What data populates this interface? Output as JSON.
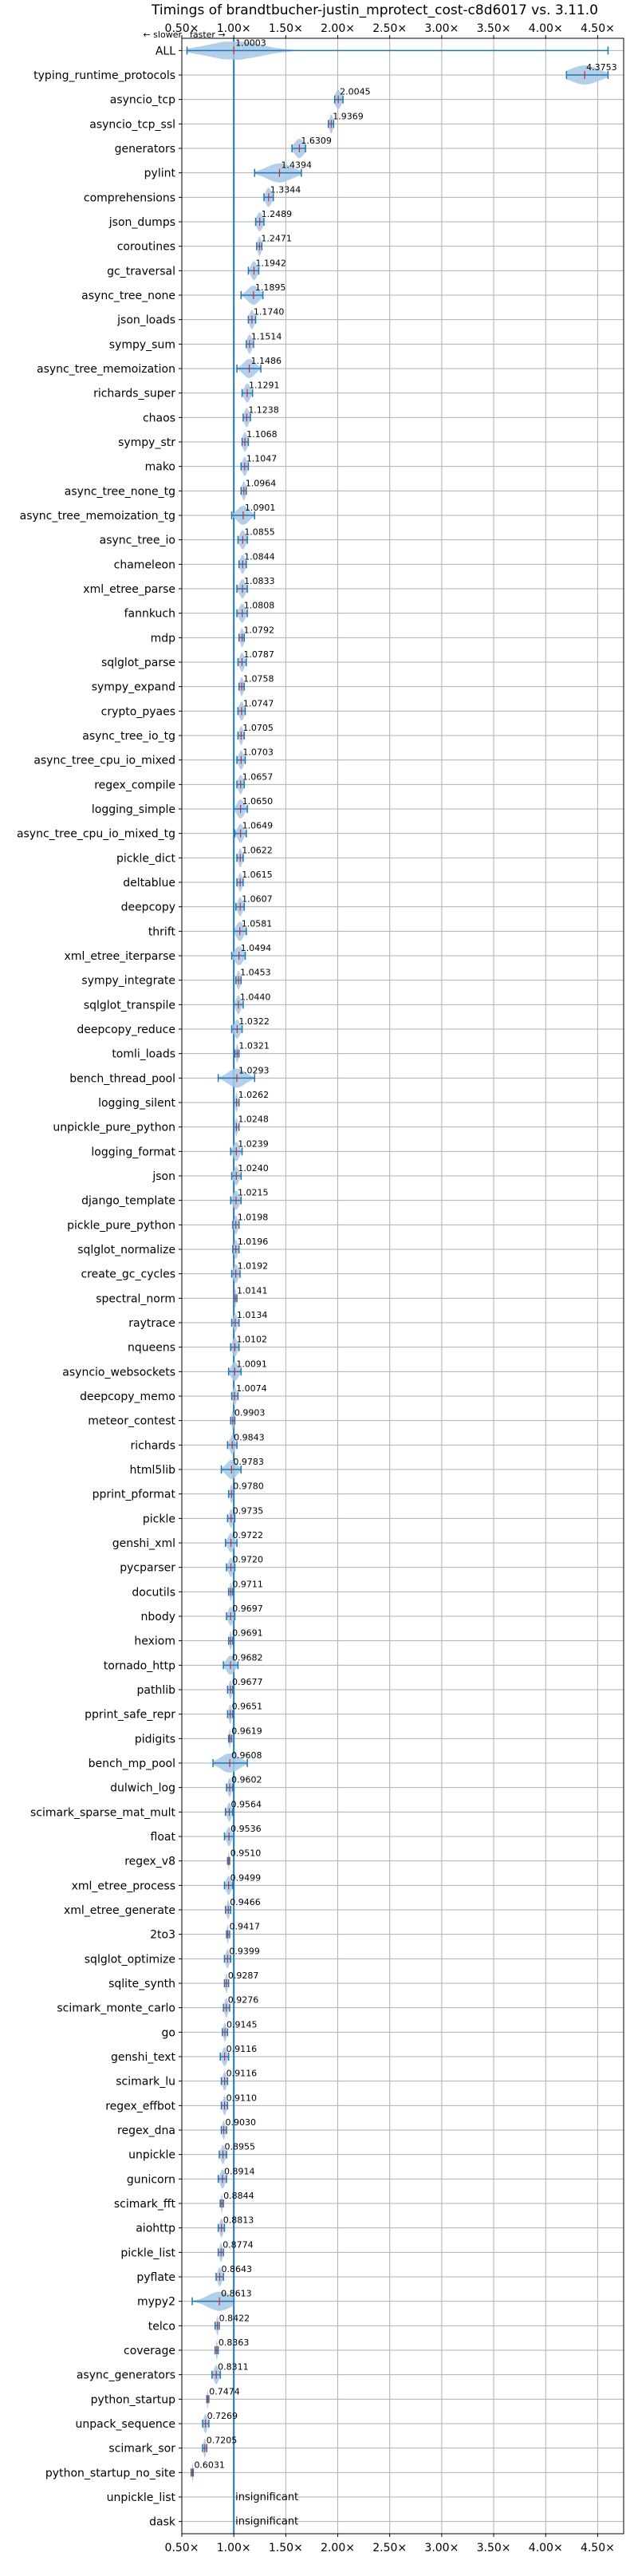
{
  "chart_data": {
    "type": "violin",
    "title": "Timings of brandtbucher-justin_mprotect_cost-c8d6017 vs. 3.11.0",
    "direction_note": {
      "slower": "← slower",
      "faster": "faster →"
    },
    "xlim": [
      0.5,
      4.75
    ],
    "xticks": [
      "0.50×",
      "1.00×",
      "1.50×",
      "2.00×",
      "2.50×",
      "3.00×",
      "3.50×",
      "4.00×",
      "4.50×"
    ],
    "xtick_values": [
      0.5,
      1.0,
      1.5,
      2.0,
      2.5,
      3.0,
      3.5,
      4.0,
      4.5
    ],
    "reference_line": 1.0,
    "grid": true,
    "insignificant_label": "insignificant",
    "benchmarks": [
      {
        "name": "ALL",
        "value": 1.0003,
        "label": "1.0003",
        "lo": 0.55,
        "hi": 4.6,
        "spread": 0.45
      },
      {
        "name": "typing_runtime_protocols",
        "value": 4.3753,
        "label": "4.3753",
        "lo": 4.2,
        "hi": 4.6,
        "spread": 0.25
      },
      {
        "name": "asyncio_tcp",
        "value": 2.0045,
        "label": "2.0045",
        "lo": 1.97,
        "hi": 2.05,
        "spread": 0.05
      },
      {
        "name": "asyncio_tcp_ssl",
        "value": 1.9369,
        "label": "1.9369",
        "lo": 1.91,
        "hi": 1.96,
        "spread": 0.03
      },
      {
        "name": "generators",
        "value": 1.6309,
        "label": "1.6309",
        "lo": 1.56,
        "hi": 1.69,
        "spread": 0.08
      },
      {
        "name": "pylint",
        "value": 1.4394,
        "label": "1.4394",
        "lo": 1.2,
        "hi": 1.65,
        "spread": 0.22
      },
      {
        "name": "comprehensions",
        "value": 1.3344,
        "label": "1.3344",
        "lo": 1.29,
        "hi": 1.38,
        "spread": 0.05
      },
      {
        "name": "json_dumps",
        "value": 1.2489,
        "label": "1.2489",
        "lo": 1.21,
        "hi": 1.29,
        "spread": 0.05
      },
      {
        "name": "coroutines",
        "value": 1.2471,
        "label": "1.2471",
        "lo": 1.22,
        "hi": 1.27,
        "spread": 0.03
      },
      {
        "name": "gc_traversal",
        "value": 1.1942,
        "label": "1.1942",
        "lo": 1.14,
        "hi": 1.24,
        "spread": 0.05
      },
      {
        "name": "async_tree_none",
        "value": 1.1895,
        "label": "1.1895",
        "lo": 1.07,
        "hi": 1.28,
        "spread": 0.1
      },
      {
        "name": "json_loads",
        "value": 1.174,
        "label": "1.1740",
        "lo": 1.14,
        "hi": 1.21,
        "spread": 0.04
      },
      {
        "name": "sympy_sum",
        "value": 1.1514,
        "label": "1.1514",
        "lo": 1.12,
        "hi": 1.19,
        "spread": 0.04
      },
      {
        "name": "async_tree_memoization",
        "value": 1.1486,
        "label": "1.1486",
        "lo": 1.03,
        "hi": 1.26,
        "spread": 0.1
      },
      {
        "name": "richards_super",
        "value": 1.1291,
        "label": "1.1291",
        "lo": 1.08,
        "hi": 1.18,
        "spread": 0.05
      },
      {
        "name": "chaos",
        "value": 1.1238,
        "label": "1.1238",
        "lo": 1.09,
        "hi": 1.16,
        "spread": 0.04
      },
      {
        "name": "sympy_str",
        "value": 1.1068,
        "label": "1.1068",
        "lo": 1.08,
        "hi": 1.14,
        "spread": 0.04
      },
      {
        "name": "mako",
        "value": 1.1047,
        "label": "1.1047",
        "lo": 1.07,
        "hi": 1.14,
        "spread": 0.04
      },
      {
        "name": "async_tree_none_tg",
        "value": 1.0964,
        "label": "1.0964",
        "lo": 1.07,
        "hi": 1.12,
        "spread": 0.03
      },
      {
        "name": "async_tree_memoization_tg",
        "value": 1.0901,
        "label": "1.0901",
        "lo": 0.98,
        "hi": 1.2,
        "spread": 0.1
      },
      {
        "name": "async_tree_io",
        "value": 1.0855,
        "label": "1.0855",
        "lo": 1.04,
        "hi": 1.13,
        "spread": 0.05
      },
      {
        "name": "chameleon",
        "value": 1.0844,
        "label": "1.0844",
        "lo": 1.05,
        "hi": 1.12,
        "spread": 0.04
      },
      {
        "name": "xml_etree_parse",
        "value": 1.0833,
        "label": "1.0833",
        "lo": 1.03,
        "hi": 1.13,
        "spread": 0.05
      },
      {
        "name": "fannkuch",
        "value": 1.0808,
        "label": "1.0808",
        "lo": 1.03,
        "hi": 1.13,
        "spread": 0.05
      },
      {
        "name": "mdp",
        "value": 1.0792,
        "label": "1.0792",
        "lo": 1.05,
        "hi": 1.1,
        "spread": 0.03
      },
      {
        "name": "sqlglot_parse",
        "value": 1.0787,
        "label": "1.0787",
        "lo": 1.04,
        "hi": 1.12,
        "spread": 0.04
      },
      {
        "name": "sympy_expand",
        "value": 1.0758,
        "label": "1.0758",
        "lo": 1.05,
        "hi": 1.1,
        "spread": 0.03
      },
      {
        "name": "crypto_pyaes",
        "value": 1.0747,
        "label": "1.0747",
        "lo": 1.04,
        "hi": 1.11,
        "spread": 0.04
      },
      {
        "name": "async_tree_io_tg",
        "value": 1.0705,
        "label": "1.0705",
        "lo": 1.04,
        "hi": 1.1,
        "spread": 0.03
      },
      {
        "name": "async_tree_cpu_io_mixed",
        "value": 1.0703,
        "label": "1.0703",
        "lo": 1.03,
        "hi": 1.11,
        "spread": 0.04
      },
      {
        "name": "regex_compile",
        "value": 1.0657,
        "label": "1.0657",
        "lo": 1.03,
        "hi": 1.1,
        "spread": 0.04
      },
      {
        "name": "logging_simple",
        "value": 1.065,
        "label": "1.0650",
        "lo": 1.0,
        "hi": 1.13,
        "spread": 0.06
      },
      {
        "name": "async_tree_cpu_io_mixed_tg",
        "value": 1.0649,
        "label": "1.0649",
        "lo": 1.01,
        "hi": 1.12,
        "spread": 0.05
      },
      {
        "name": "pickle_dict",
        "value": 1.0622,
        "label": "1.0622",
        "lo": 1.03,
        "hi": 1.09,
        "spread": 0.03
      },
      {
        "name": "deltablue",
        "value": 1.0615,
        "label": "1.0615",
        "lo": 1.03,
        "hi": 1.09,
        "spread": 0.03
      },
      {
        "name": "deepcopy",
        "value": 1.0607,
        "label": "1.0607",
        "lo": 1.02,
        "hi": 1.1,
        "spread": 0.04
      },
      {
        "name": "thrift",
        "value": 1.0581,
        "label": "1.0581",
        "lo": 1.0,
        "hi": 1.12,
        "spread": 0.06
      },
      {
        "name": "xml_etree_iterparse",
        "value": 1.0494,
        "label": "1.0494",
        "lo": 0.98,
        "hi": 1.11,
        "spread": 0.07
      },
      {
        "name": "sympy_integrate",
        "value": 1.0453,
        "label": "1.0453",
        "lo": 1.02,
        "hi": 1.07,
        "spread": 0.03
      },
      {
        "name": "sqlglot_transpile",
        "value": 1.044,
        "label": "1.0440",
        "lo": 1.0,
        "hi": 1.09,
        "spread": 0.04
      },
      {
        "name": "deepcopy_reduce",
        "value": 1.0322,
        "label": "1.0322",
        "lo": 0.98,
        "hi": 1.08,
        "spread": 0.05
      },
      {
        "name": "tomli_loads",
        "value": 1.0321,
        "label": "1.0321",
        "lo": 1.01,
        "hi": 1.05,
        "spread": 0.02
      },
      {
        "name": "bench_thread_pool",
        "value": 1.0293,
        "label": "1.0293",
        "lo": 0.85,
        "hi": 1.2,
        "spread": 0.15
      },
      {
        "name": "logging_silent",
        "value": 1.0262,
        "label": "1.0262",
        "lo": 1.0,
        "hi": 1.05,
        "spread": 0.02
      },
      {
        "name": "unpickle_pure_python",
        "value": 1.0248,
        "label": "1.0248",
        "lo": 1.0,
        "hi": 1.05,
        "spread": 0.02
      },
      {
        "name": "logging_format",
        "value": 1.0239,
        "label": "1.0239",
        "lo": 0.97,
        "hi": 1.08,
        "spread": 0.05
      },
      {
        "name": "json",
        "value": 1.024,
        "label": "1.0240",
        "lo": 0.98,
        "hi": 1.07,
        "spread": 0.04
      },
      {
        "name": "django_template",
        "value": 1.0215,
        "label": "1.0215",
        "lo": 0.97,
        "hi": 1.07,
        "spread": 0.05
      },
      {
        "name": "pickle_pure_python",
        "value": 1.0198,
        "label": "1.0198",
        "lo": 0.99,
        "hi": 1.05,
        "spread": 0.03
      },
      {
        "name": "sqlglot_normalize",
        "value": 1.0196,
        "label": "1.0196",
        "lo": 0.99,
        "hi": 1.05,
        "spread": 0.03
      },
      {
        "name": "create_gc_cycles",
        "value": 1.0192,
        "label": "1.0192",
        "lo": 0.98,
        "hi": 1.06,
        "spread": 0.04
      },
      {
        "name": "spectral_norm",
        "value": 1.0141,
        "label": "1.0141",
        "lo": 1.0,
        "hi": 1.03,
        "spread": 0.015
      },
      {
        "name": "raytrace",
        "value": 1.0134,
        "label": "1.0134",
        "lo": 0.98,
        "hi": 1.05,
        "spread": 0.03
      },
      {
        "name": "nqueens",
        "value": 1.0102,
        "label": "1.0102",
        "lo": 0.97,
        "hi": 1.05,
        "spread": 0.04
      },
      {
        "name": "asyncio_websockets",
        "value": 1.0091,
        "label": "1.0091",
        "lo": 0.95,
        "hi": 1.07,
        "spread": 0.06
      },
      {
        "name": "deepcopy_memo",
        "value": 1.0074,
        "label": "1.0074",
        "lo": 0.98,
        "hi": 1.04,
        "spread": 0.03
      },
      {
        "name": "meteor_contest",
        "value": 0.9903,
        "label": "0.9903",
        "lo": 0.97,
        "hi": 1.01,
        "spread": 0.02
      },
      {
        "name": "richards",
        "value": 0.9843,
        "label": "0.9843",
        "lo": 0.94,
        "hi": 1.03,
        "spread": 0.04
      },
      {
        "name": "html5lib",
        "value": 0.9783,
        "label": "0.9783",
        "lo": 0.88,
        "hi": 1.07,
        "spread": 0.09
      },
      {
        "name": "pprint_pformat",
        "value": 0.978,
        "label": "0.9780",
        "lo": 0.95,
        "hi": 1.0,
        "spread": 0.025
      },
      {
        "name": "pickle",
        "value": 0.9735,
        "label": "0.9735",
        "lo": 0.94,
        "hi": 1.01,
        "spread": 0.03
      },
      {
        "name": "genshi_xml",
        "value": 0.9722,
        "label": "0.9722",
        "lo": 0.92,
        "hi": 1.03,
        "spread": 0.05
      },
      {
        "name": "pycparser",
        "value": 0.972,
        "label": "0.9720",
        "lo": 0.93,
        "hi": 1.01,
        "spread": 0.04
      },
      {
        "name": "docutils",
        "value": 0.9711,
        "label": "0.9711",
        "lo": 0.95,
        "hi": 0.99,
        "spread": 0.02
      },
      {
        "name": "nbody",
        "value": 0.9697,
        "label": "0.9697",
        "lo": 0.93,
        "hi": 1.01,
        "spread": 0.04
      },
      {
        "name": "hexiom",
        "value": 0.9691,
        "label": "0.9691",
        "lo": 0.95,
        "hi": 0.99,
        "spread": 0.02
      },
      {
        "name": "tornado_http",
        "value": 0.9682,
        "label": "0.9682",
        "lo": 0.9,
        "hi": 1.04,
        "spread": 0.07
      },
      {
        "name": "pathlib",
        "value": 0.9677,
        "label": "0.9677",
        "lo": 0.94,
        "hi": 0.99,
        "spread": 0.025
      },
      {
        "name": "pprint_safe_repr",
        "value": 0.9651,
        "label": "0.9651",
        "lo": 0.94,
        "hi": 0.99,
        "spread": 0.025
      },
      {
        "name": "pidigits",
        "value": 0.9619,
        "label": "0.9619",
        "lo": 0.95,
        "hi": 0.98,
        "spread": 0.015
      },
      {
        "name": "bench_mp_pool",
        "value": 0.9608,
        "label": "0.9608",
        "lo": 0.8,
        "hi": 1.13,
        "spread": 0.16
      },
      {
        "name": "dulwich_log",
        "value": 0.9602,
        "label": "0.9602",
        "lo": 0.93,
        "hi": 0.99,
        "spread": 0.03
      },
      {
        "name": "scimark_sparse_mat_mult",
        "value": 0.9564,
        "label": "0.9564",
        "lo": 0.92,
        "hi": 0.99,
        "spread": 0.035
      },
      {
        "name": "float",
        "value": 0.9536,
        "label": "0.9536",
        "lo": 0.91,
        "hi": 1.0,
        "spread": 0.04
      },
      {
        "name": "regex_v8",
        "value": 0.951,
        "label": "0.9510",
        "lo": 0.94,
        "hi": 0.96,
        "spread": 0.01
      },
      {
        "name": "xml_etree_process",
        "value": 0.9499,
        "label": "0.9499",
        "lo": 0.91,
        "hi": 0.99,
        "spread": 0.04
      },
      {
        "name": "xml_etree_generate",
        "value": 0.9466,
        "label": "0.9466",
        "lo": 0.92,
        "hi": 0.97,
        "spread": 0.025
      },
      {
        "name": "2to3",
        "value": 0.9417,
        "label": "0.9417",
        "lo": 0.93,
        "hi": 0.96,
        "spread": 0.015
      },
      {
        "name": "sqlglot_optimize",
        "value": 0.9399,
        "label": "0.9399",
        "lo": 0.91,
        "hi": 0.97,
        "spread": 0.03
      },
      {
        "name": "sqlite_synth",
        "value": 0.9287,
        "label": "0.9287",
        "lo": 0.91,
        "hi": 0.95,
        "spread": 0.02
      },
      {
        "name": "scimark_monte_carlo",
        "value": 0.9276,
        "label": "0.9276",
        "lo": 0.9,
        "hi": 0.96,
        "spread": 0.03
      },
      {
        "name": "go",
        "value": 0.9145,
        "label": "0.9145",
        "lo": 0.89,
        "hi": 0.94,
        "spread": 0.025
      },
      {
        "name": "genshi_text",
        "value": 0.9116,
        "label": "0.9116",
        "lo": 0.87,
        "hi": 0.95,
        "spread": 0.04
      },
      {
        "name": "scimark_lu",
        "value": 0.9116,
        "label": "0.9116",
        "lo": 0.88,
        "hi": 0.94,
        "spread": 0.03
      },
      {
        "name": "regex_effbot",
        "value": 0.911,
        "label": "0.9110",
        "lo": 0.88,
        "hi": 0.94,
        "spread": 0.03
      },
      {
        "name": "regex_dna",
        "value": 0.903,
        "label": "0.9030",
        "lo": 0.88,
        "hi": 0.93,
        "spread": 0.025
      },
      {
        "name": "unpickle",
        "value": 0.8955,
        "label": "0.8955",
        "lo": 0.86,
        "hi": 0.93,
        "spread": 0.035
      },
      {
        "name": "gunicorn",
        "value": 0.8914,
        "label": "0.8914",
        "lo": 0.85,
        "hi": 0.93,
        "spread": 0.04
      },
      {
        "name": "scimark_fft",
        "value": 0.8844,
        "label": "0.8844",
        "lo": 0.87,
        "hi": 0.9,
        "spread": 0.015
      },
      {
        "name": "aiohttp",
        "value": 0.8813,
        "label": "0.8813",
        "lo": 0.85,
        "hi": 0.91,
        "spread": 0.03
      },
      {
        "name": "pickle_list",
        "value": 0.8774,
        "label": "0.8774",
        "lo": 0.85,
        "hi": 0.9,
        "spread": 0.025
      },
      {
        "name": "pyflate",
        "value": 0.8643,
        "label": "0.8643",
        "lo": 0.83,
        "hi": 0.9,
        "spread": 0.035
      },
      {
        "name": "mypy2",
        "value": 0.8613,
        "label": "0.8613",
        "lo": 0.6,
        "hi": 1.0,
        "spread": 0.2
      },
      {
        "name": "telco",
        "value": 0.8422,
        "label": "0.8422",
        "lo": 0.82,
        "hi": 0.86,
        "spread": 0.02
      },
      {
        "name": "coverage",
        "value": 0.8363,
        "label": "0.8363",
        "lo": 0.82,
        "hi": 0.85,
        "spread": 0.015
      },
      {
        "name": "async_generators",
        "value": 0.8311,
        "label": "0.8311",
        "lo": 0.79,
        "hi": 0.87,
        "spread": 0.04
      },
      {
        "name": "python_startup",
        "value": 0.7474,
        "label": "0.7474",
        "lo": 0.74,
        "hi": 0.76,
        "spread": 0.01
      },
      {
        "name": "unpack_sequence",
        "value": 0.7269,
        "label": "0.7269",
        "lo": 0.7,
        "hi": 0.76,
        "spread": 0.03
      },
      {
        "name": "scimark_sor",
        "value": 0.7205,
        "label": "0.7205",
        "lo": 0.7,
        "hi": 0.74,
        "spread": 0.02
      },
      {
        "name": "python_startup_no_site",
        "value": 0.6031,
        "label": "0.6031",
        "lo": 0.59,
        "hi": 0.61,
        "spread": 0.01
      },
      {
        "name": "unpickle_list",
        "value": null,
        "label": "insignificant"
      },
      {
        "name": "dask",
        "value": null,
        "label": "insignificant"
      }
    ]
  },
  "colors": {
    "violin": "#a6c8e6",
    "line": "#1f77b4",
    "median": "#d62728",
    "grid": "#b0b0b0"
  }
}
